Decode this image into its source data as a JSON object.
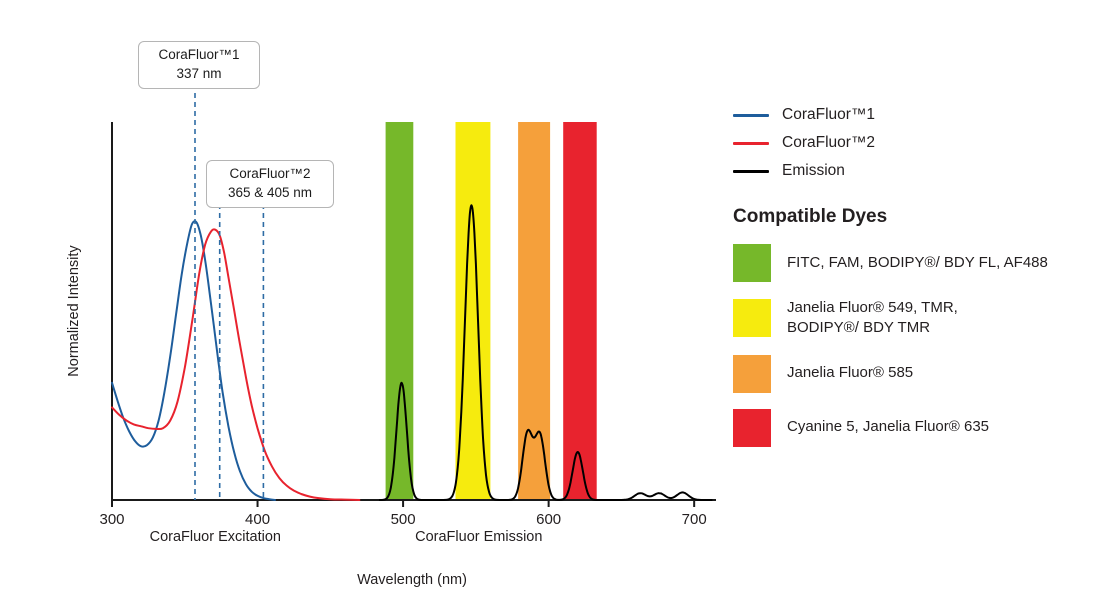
{
  "chart_data": {
    "type": "line",
    "title": "",
    "xlabel": "Wavelength (nm)",
    "ylabel": "Normalized Intensity",
    "xlim": [
      300,
      715
    ],
    "ylim": [
      0,
      1
    ],
    "x_ticks": [
      300,
      400,
      500,
      600,
      700
    ],
    "grid": false,
    "dash_color": "#2e6ca5",
    "axis_color": "#1a1a1a",
    "axis_section_labels": [
      {
        "text": "CoraFluor Excitation",
        "x_nm": 371
      },
      {
        "text": "CoraFluor Emission",
        "x_nm": 552
      }
    ],
    "bands": [
      {
        "name": "green",
        "color": "#76b82a",
        "from_nm": 488,
        "to_nm": 507
      },
      {
        "name": "yellow",
        "color": "#f6eb0e",
        "from_nm": 536,
        "to_nm": 560
      },
      {
        "name": "orange",
        "color": "#f5a03b",
        "from_nm": 579,
        "to_nm": 601
      },
      {
        "name": "red",
        "color": "#e8232e",
        "from_nm": 610,
        "to_nm": 633
      }
    ],
    "series": [
      {
        "name": "CoraFluor™1",
        "color": "#1e5d9c",
        "points": [
          [
            300,
            0.31
          ],
          [
            304,
            0.26
          ],
          [
            308,
            0.215
          ],
          [
            312,
            0.18
          ],
          [
            316,
            0.155
          ],
          [
            320,
            0.142
          ],
          [
            324,
            0.145
          ],
          [
            328,
            0.165
          ],
          [
            332,
            0.21
          ],
          [
            336,
            0.285
          ],
          [
            340,
            0.38
          ],
          [
            344,
            0.49
          ],
          [
            348,
            0.6
          ],
          [
            352,
            0.685
          ],
          [
            355,
            0.73
          ],
          [
            358,
            0.735
          ],
          [
            361,
            0.7
          ],
          [
            364,
            0.635
          ],
          [
            367,
            0.55
          ],
          [
            370,
            0.46
          ],
          [
            373,
            0.37
          ],
          [
            376,
            0.285
          ],
          [
            380,
            0.195
          ],
          [
            384,
            0.125
          ],
          [
            388,
            0.075
          ],
          [
            392,
            0.042
          ],
          [
            396,
            0.022
          ],
          [
            400,
            0.011
          ],
          [
            404,
            0.005
          ],
          [
            408,
            0.002
          ],
          [
            412,
            0.0
          ]
        ]
      },
      {
        "name": "CoraFluor™2",
        "color": "#e8232e",
        "points": [
          [
            300,
            0.245
          ],
          [
            305,
            0.225
          ],
          [
            310,
            0.21
          ],
          [
            315,
            0.2
          ],
          [
            320,
            0.195
          ],
          [
            325,
            0.19
          ],
          [
            330,
            0.188
          ],
          [
            335,
            0.19
          ],
          [
            340,
            0.21
          ],
          [
            345,
            0.26
          ],
          [
            350,
            0.35
          ],
          [
            355,
            0.47
          ],
          [
            360,
            0.6
          ],
          [
            364,
            0.675
          ],
          [
            368,
            0.71
          ],
          [
            371,
            0.715
          ],
          [
            374,
            0.7
          ],
          [
            377,
            0.655
          ],
          [
            380,
            0.59
          ],
          [
            384,
            0.5
          ],
          [
            388,
            0.41
          ],
          [
            392,
            0.325
          ],
          [
            396,
            0.25
          ],
          [
            400,
            0.19
          ],
          [
            405,
            0.13
          ],
          [
            410,
            0.088
          ],
          [
            415,
            0.058
          ],
          [
            420,
            0.038
          ],
          [
            425,
            0.025
          ],
          [
            430,
            0.016
          ],
          [
            436,
            0.009
          ],
          [
            442,
            0.005
          ],
          [
            450,
            0.002
          ],
          [
            460,
            0.001
          ],
          [
            470,
            0.0
          ]
        ]
      },
      {
        "name": "Emission",
        "color": "#000000",
        "range": [
          484,
          712
        ],
        "peaks": [
          {
            "center": 499,
            "height": 0.31,
            "sigma": 3.5
          },
          {
            "center": 547,
            "height": 0.78,
            "sigma": 4.5
          },
          {
            "center": 585.5,
            "height": 0.175,
            "sigma": 3.5
          },
          {
            "center": 594,
            "height": 0.17,
            "sigma": 3.5
          },
          {
            "center": 620,
            "height": 0.127,
            "sigma": 3.5
          },
          {
            "center": 663,
            "height": 0.018,
            "sigma": 4
          },
          {
            "center": 676,
            "height": 0.018,
            "sigma": 4
          },
          {
            "center": 692,
            "height": 0.02,
            "sigma": 4
          }
        ]
      }
    ],
    "annotations": [
      {
        "title": "CoraFluor™1",
        "subtitle": "337 nm",
        "lines_nm": [
          357
        ]
      },
      {
        "title": "CoraFluor™2",
        "subtitle": "365 & 405 nm",
        "lines_nm": [
          374,
          404
        ]
      }
    ]
  },
  "legend": {
    "items": [
      {
        "label": "CoraFluor™1",
        "color": "#1e5d9c"
      },
      {
        "label": "CoraFluor™2",
        "color": "#e8232e"
      },
      {
        "label": "Emission",
        "color": "#000000"
      }
    ]
  },
  "dyes": {
    "heading": "Compatible Dyes",
    "items": [
      {
        "color": "#76b82a",
        "label": "FITC, FAM, BODIPY®/ BDY FL, AF488"
      },
      {
        "color": "#f6eb0e",
        "label": "Janelia Fluor® 549, TMR,\nBODIPY®/ BDY TMR"
      },
      {
        "color": "#f5a03b",
        "label": "Janelia Fluor® 585"
      },
      {
        "color": "#e8232e",
        "label": "Cyanine 5, Janelia Fluor® 635"
      }
    ]
  }
}
